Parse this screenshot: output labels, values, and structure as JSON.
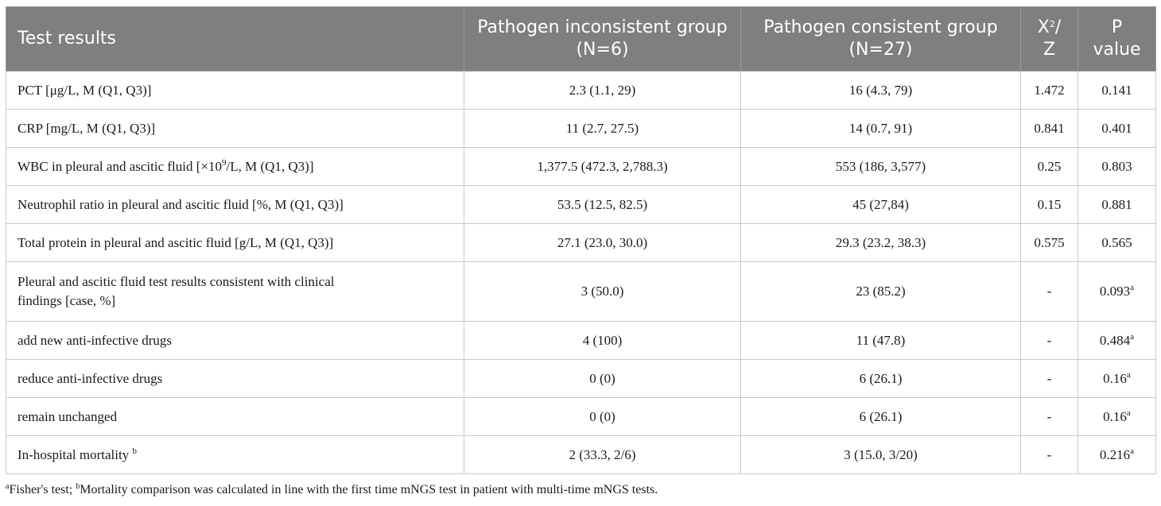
{
  "table": {
    "headers": {
      "c1": "Test results",
      "c2a": "Pathogen inconsistent group",
      "c2b": "(N=6)",
      "c3a": "Pathogen consistent group",
      "c3b": "(N=27)",
      "c4a": "X",
      "c4sup": "2",
      "c4b": "/",
      "c4c": "Z",
      "c5a": "P",
      "c5b": "value"
    },
    "rows": [
      {
        "label": "PCT [μg/L, M (Q1, Q3)]",
        "inconsistent": "2.3 (1.1, 29)",
        "consistent": "16 (4.3, 79)",
        "stat": "1.472",
        "p": "0.141",
        "p_sup": ""
      },
      {
        "label": "CRP [mg/L, M (Q1, Q3)]",
        "inconsistent": "11 (2.7, 27.5)",
        "consistent": "14 (0.7, 91)",
        "stat": "0.841",
        "p": "0.401",
        "p_sup": ""
      },
      {
        "label_pre": "WBC in pleural and ascitic fluid [×10",
        "label_sup": "9",
        "label_post": "/L, M (Q1, Q3)]",
        "inconsistent": "1,377.5 (472.3, 2,788.3)",
        "consistent": "553 (186, 3,577)",
        "stat": "0.25",
        "p": "0.803",
        "p_sup": ""
      },
      {
        "label": "Neutrophil ratio in pleural and ascitic fluid [%, M (Q1, Q3)]",
        "inconsistent": "53.5 (12.5, 82.5)",
        "consistent": "45 (27,84)",
        "stat": "0.15",
        "p": "0.881",
        "p_sup": ""
      },
      {
        "label": "Total protein in pleural and ascitic fluid [g/L, M (Q1, Q3)]",
        "inconsistent": "27.1 (23.0, 30.0)",
        "consistent": "29.3 (23.2, 38.3)",
        "stat": "0.575",
        "p": "0.565",
        "p_sup": ""
      },
      {
        "label_line1": "Pleural and ascitic fluid test results consistent with clinical",
        "label_line2": "findings [case, %]",
        "inconsistent": "3 (50.0)",
        "consistent": "23 (85.2)",
        "stat": "-",
        "p": "0.093",
        "p_sup": "a"
      },
      {
        "label": "add new anti-infective drugs",
        "inconsistent": "4 (100)",
        "consistent": "11 (47.8)",
        "stat": "-",
        "p": "0.484",
        "p_sup": "a"
      },
      {
        "label": "reduce anti-infective drugs",
        "inconsistent": "0 (0)",
        "consistent": "6 (26.1)",
        "stat": "-",
        "p": "0.16",
        "p_sup": "a"
      },
      {
        "label": "remain unchanged",
        "inconsistent": "0 (0)",
        "consistent": "6 (26.1)",
        "stat": "-",
        "p": "0.16",
        "p_sup": "a"
      },
      {
        "label": "In-hospital mortality",
        "label_sup": "b",
        "inconsistent": "2 (33.3, 2/6)",
        "consistent": "3 (15.0, 3/20)",
        "stat": "-",
        "p": "0.216",
        "p_sup": "a"
      }
    ]
  },
  "footnote": {
    "sup_a": "a",
    "text_a": "Fisher's test; ",
    "sup_b": "b",
    "text_b": "Mortality comparison was calculated in line with the first time mNGS test in patient with multi-time mNGS tests."
  },
  "colors": {
    "header_bg": "#7f7f7f",
    "border": "#c8c8c8"
  }
}
